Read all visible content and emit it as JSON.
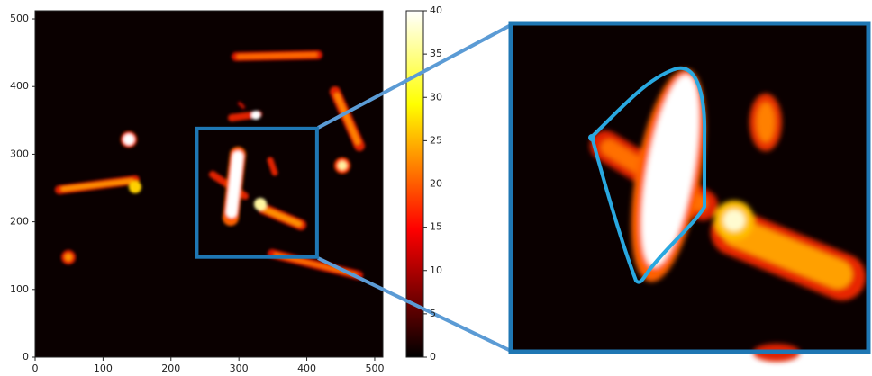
{
  "chart_data": {
    "type": "heatmap",
    "colormap": "hot",
    "xlim": [
      0,
      512
    ],
    "ylim": [
      0,
      512
    ],
    "xticks": [
      0,
      100,
      200,
      300,
      400,
      500
    ],
    "yticks": [
      0,
      100,
      200,
      300,
      400,
      500
    ],
    "clim": [
      0,
      40
    ],
    "cticks": [
      0,
      5,
      10,
      15,
      20,
      25,
      30,
      35,
      40
    ],
    "zoom": {
      "xlim": [
        238,
        415
      ],
      "ylim": [
        148,
        338
      ],
      "color": "#1f77b4"
    }
  }
}
